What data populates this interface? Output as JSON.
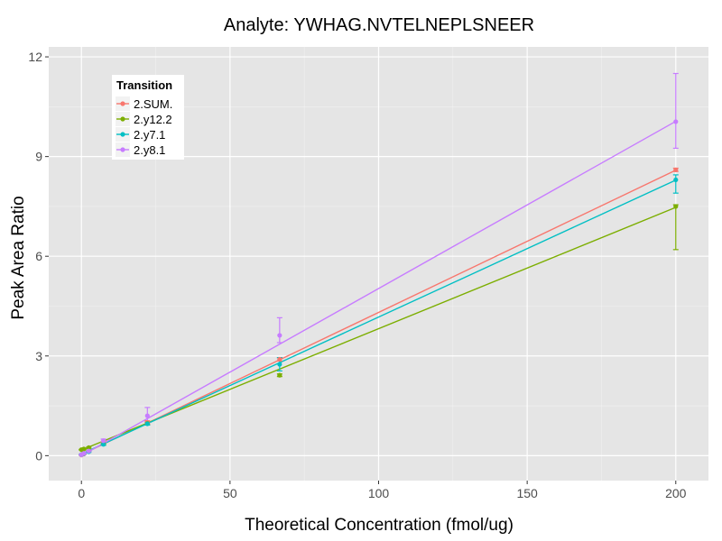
{
  "chart_data": {
    "type": "line",
    "title": "Analyte: YWHAG.NVTELNEPLSNEER",
    "xlabel": "Theoretical Concentration (fmol/ug)",
    "ylabel": "Peak Area Ratio",
    "xlim": [
      -11,
      211
    ],
    "ylim": [
      -0.75,
      12.3
    ],
    "xticks": [
      0,
      50,
      100,
      150,
      200
    ],
    "yticks": [
      0,
      3,
      6,
      9,
      12
    ],
    "grid": true,
    "legend": {
      "title": "Transition",
      "position": "top-left"
    },
    "series": [
      {
        "name": "2.SUM.",
        "color": "#F8766D",
        "fit": {
          "slope": 0.0428,
          "intercept": 0.03
        },
        "points": [
          {
            "x": 0,
            "y": 0.02,
            "ymin": 0.01,
            "ymax": 0.03
          },
          {
            "x": 0.82,
            "y": 0.05,
            "ymin": 0.04,
            "ymax": 0.06
          },
          {
            "x": 2.47,
            "y": 0.14,
            "ymin": 0.12,
            "ymax": 0.16
          },
          {
            "x": 7.41,
            "y": 0.38,
            "ymin": 0.34,
            "ymax": 0.42
          },
          {
            "x": 22.2,
            "y": 1.0,
            "ymin": 0.95,
            "ymax": 1.05
          },
          {
            "x": 66.7,
            "y": 2.9,
            "ymin": 2.85,
            "ymax": 2.95
          },
          {
            "x": 200,
            "y": 8.6,
            "ymin": 8.55,
            "ymax": 8.65
          }
        ]
      },
      {
        "name": "2.y12.2",
        "color": "#7CAE00",
        "fit": {
          "slope": 0.0365,
          "intercept": 0.17
        },
        "points": [
          {
            "x": 0,
            "y": 0.18,
            "ymin": 0.17,
            "ymax": 0.19
          },
          {
            "x": 0.82,
            "y": 0.2,
            "ymin": 0.18,
            "ymax": 0.22
          },
          {
            "x": 2.47,
            "y": 0.24,
            "ymin": 0.22,
            "ymax": 0.26
          },
          {
            "x": 7.41,
            "y": 0.36,
            "ymin": 0.33,
            "ymax": 0.39
          },
          {
            "x": 22.2,
            "y": 0.97,
            "ymin": 0.93,
            "ymax": 1.01
          },
          {
            "x": 66.7,
            "y": 2.42,
            "ymin": 2.38,
            "ymax": 2.46
          },
          {
            "x": 200,
            "y": 7.5,
            "ymin": 6.2,
            "ymax": 7.55
          }
        ]
      },
      {
        "name": "2.y7.1",
        "color": "#00BFC4",
        "fit": {
          "slope": 0.0412,
          "intercept": 0.05
        },
        "points": [
          {
            "x": 0,
            "y": 0.03,
            "ymin": 0.02,
            "ymax": 0.04
          },
          {
            "x": 0.82,
            "y": 0.06,
            "ymin": 0.05,
            "ymax": 0.07
          },
          {
            "x": 2.47,
            "y": 0.12,
            "ymin": 0.1,
            "ymax": 0.14
          },
          {
            "x": 7.41,
            "y": 0.34,
            "ymin": 0.31,
            "ymax": 0.37
          },
          {
            "x": 22.2,
            "y": 0.96,
            "ymin": 0.92,
            "ymax": 1.0
          },
          {
            "x": 66.7,
            "y": 2.75,
            "ymin": 2.55,
            "ymax": 2.95
          },
          {
            "x": 200,
            "y": 8.3,
            "ymin": 7.9,
            "ymax": 8.45
          }
        ]
      },
      {
        "name": "2.y8.1",
        "color": "#C77CFF",
        "fit": {
          "slope": 0.0503,
          "intercept": 0.0
        },
        "points": [
          {
            "x": 0,
            "y": 0.03,
            "ymin": 0.02,
            "ymax": 0.04
          },
          {
            "x": 0.82,
            "y": 0.07,
            "ymin": 0.06,
            "ymax": 0.08
          },
          {
            "x": 2.47,
            "y": 0.14,
            "ymin": 0.12,
            "ymax": 0.16
          },
          {
            "x": 7.41,
            "y": 0.45,
            "ymin": 0.4,
            "ymax": 0.5
          },
          {
            "x": 22.2,
            "y": 1.2,
            "ymin": 1.0,
            "ymax": 1.45
          },
          {
            "x": 66.7,
            "y": 3.62,
            "ymin": 3.4,
            "ymax": 4.15
          },
          {
            "x": 200,
            "y": 10.05,
            "ymin": 9.25,
            "ymax": 11.5
          }
        ]
      }
    ]
  }
}
